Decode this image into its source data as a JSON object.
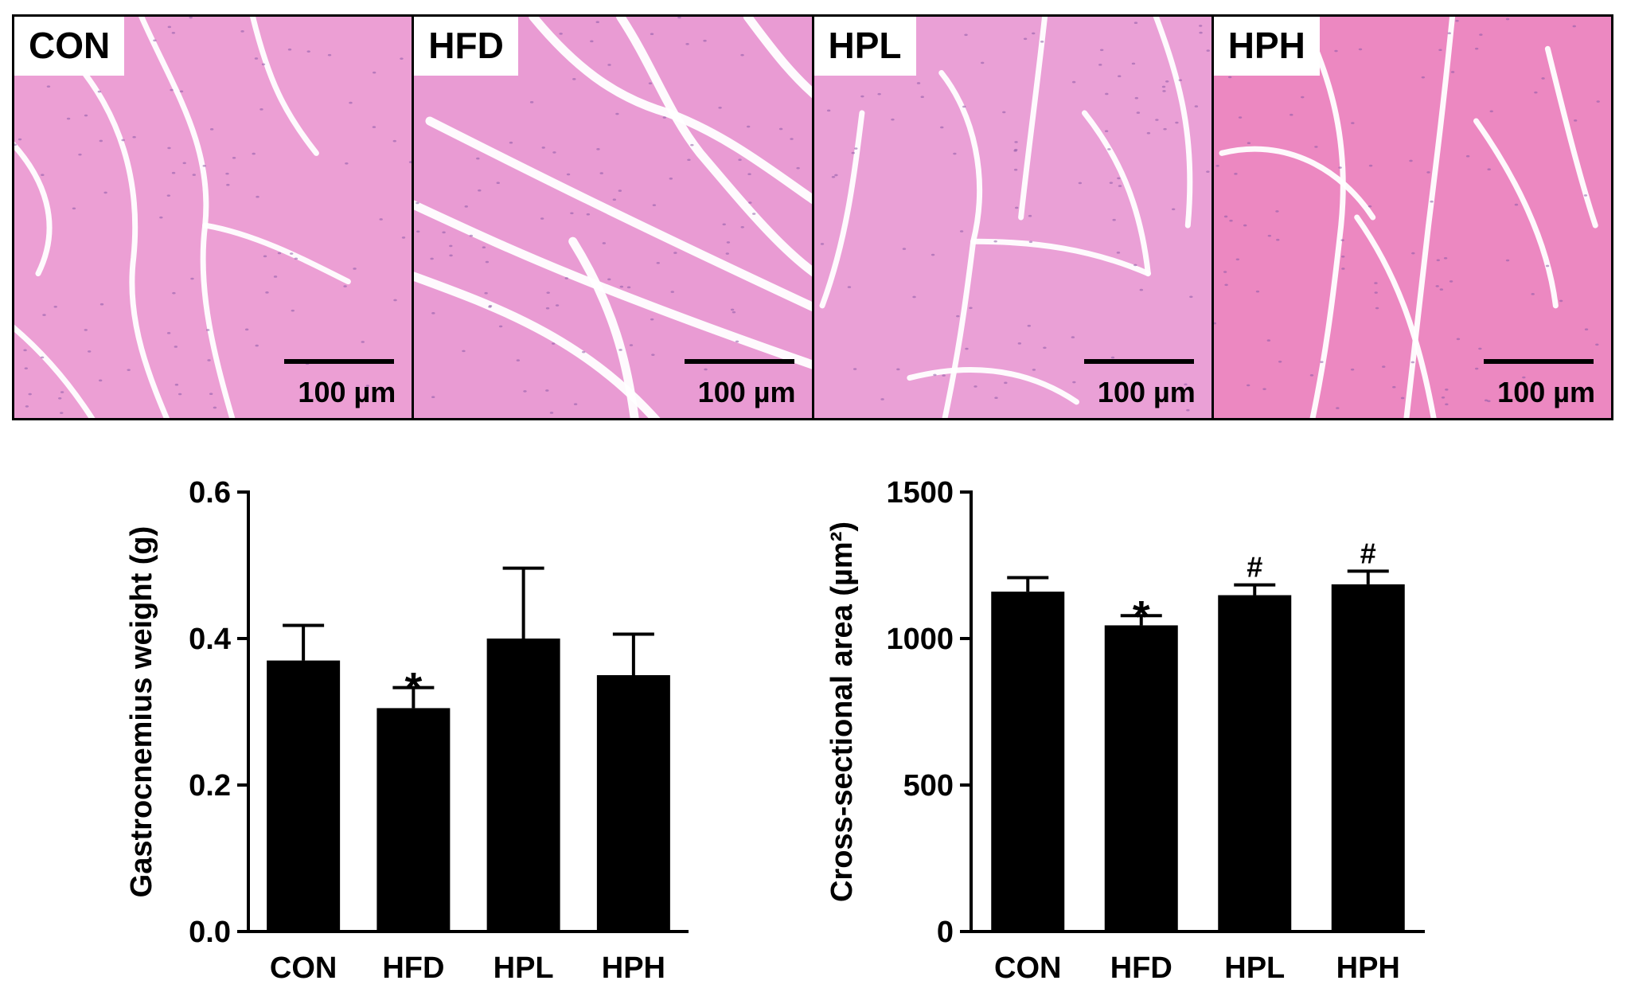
{
  "panels": [
    {
      "label": "CON",
      "scale": "100 µm"
    },
    {
      "label": "HFD",
      "scale": "100 µm"
    },
    {
      "label": "HPL",
      "scale": "100 µm"
    },
    {
      "label": "HPH",
      "scale": "100 µm"
    }
  ],
  "colors": {
    "tissue": "#e99ad2",
    "tissue_alt": "#ec88c0",
    "gap": "#ffffff",
    "bar": "#000000"
  },
  "chart_data": [
    {
      "type": "bar",
      "title": "",
      "xlabel": "",
      "ylabel": "Gastrocnemius weight (g)",
      "categories": [
        "CON",
        "HFD",
        "HPL",
        "HPH"
      ],
      "values": [
        0.37,
        0.305,
        0.4,
        0.35
      ],
      "errors": [
        0.048,
        0.028,
        0.096,
        0.056
      ],
      "annotations": [
        "",
        "*",
        "",
        ""
      ],
      "ylim": [
        0,
        0.6
      ],
      "yticks": [
        "0.0",
        "0.2",
        "0.4",
        "0.6"
      ],
      "ytick_values": [
        0,
        0.2,
        0.4,
        0.6
      ]
    },
    {
      "type": "bar",
      "title": "",
      "xlabel": "",
      "ylabel": "Cross-sectional area (µm²)",
      "categories": [
        "CON",
        "HFD",
        "HPL",
        "HPH"
      ],
      "values": [
        1160,
        1045,
        1148,
        1185
      ],
      "errors": [
        48,
        33,
        35,
        45
      ],
      "annotations": [
        "",
        "*",
        "#",
        "#"
      ],
      "ylim": [
        0,
        1500
      ],
      "yticks": [
        "0",
        "500",
        "1000",
        "1500"
      ],
      "ytick_values": [
        0,
        500,
        1000,
        1500
      ]
    }
  ]
}
